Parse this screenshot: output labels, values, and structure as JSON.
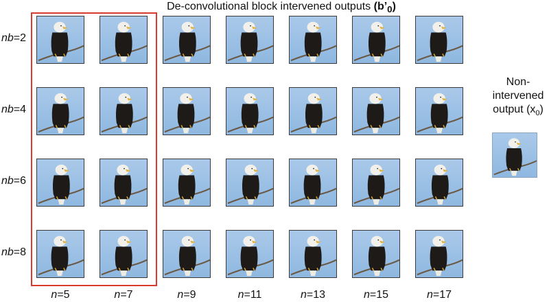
{
  "figure": {
    "title_prefix": "De-convolutional block intervened outputs ",
    "title_bold": "(b’",
    "title_sub": "0",
    "title_bold_close": ")",
    "rows": [
      {
        "label_var": "nb",
        "label_rest": "=2"
      },
      {
        "label_var": "nb",
        "label_rest": "=4"
      },
      {
        "label_var": "nb",
        "label_rest": "=6"
      },
      {
        "label_var": "nb",
        "label_rest": "=8"
      }
    ],
    "columns": [
      {
        "label_var": "n",
        "label_rest": "=5"
      },
      {
        "label_var": "n",
        "label_rest": "=7"
      },
      {
        "label_var": "n",
        "label_rest": "=9"
      },
      {
        "label_var": "n",
        "label_rest": "=11"
      },
      {
        "label_var": "n",
        "label_rest": "=13"
      },
      {
        "label_var": "n",
        "label_rest": "=15"
      },
      {
        "label_var": "n",
        "label_rest": "=17"
      }
    ],
    "side": {
      "line1": "Non-",
      "line2": "intervened",
      "line3": "output (x",
      "line3_sub": "0",
      "line3_close": ")"
    },
    "colors": {
      "highlight": "#d93a2e",
      "sky": "#8fb8e0",
      "eagle_body": "#1e1a17",
      "eagle_head": "#f2f0ea"
    },
    "image_content": "bald-eagle-on-branch"
  }
}
